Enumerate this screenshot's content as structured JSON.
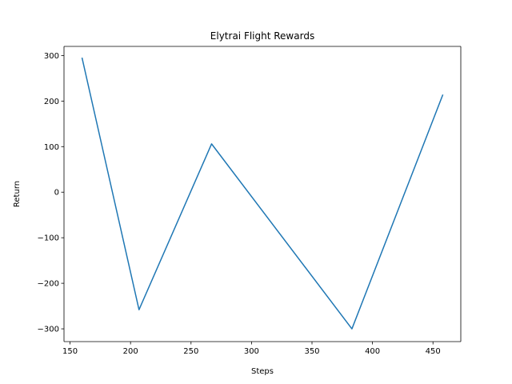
{
  "chart_data": {
    "type": "line",
    "title": "Elytrai Flight Rewards",
    "xlabel": "Steps",
    "ylabel": "Return",
    "xlim": [
      145,
      473
    ],
    "ylim": [
      -328,
      320
    ],
    "xticks": [
      150,
      200,
      250,
      300,
      350,
      400,
      450
    ],
    "yticks": [
      -300,
      -200,
      -100,
      0,
      100,
      200,
      300
    ],
    "xtick_labels": [
      "150",
      "200",
      "250",
      "300",
      "350",
      "400",
      "450"
    ],
    "ytick_labels": [
      "−300",
      "−200",
      "−100",
      "0",
      "100",
      "200",
      "300"
    ],
    "grid": false,
    "series": [
      {
        "color": "#1f77b4",
        "x": [
          160,
          207,
          267,
          383,
          458
        ],
        "y": [
          294,
          -258,
          106,
          -300,
          213
        ]
      }
    ]
  }
}
